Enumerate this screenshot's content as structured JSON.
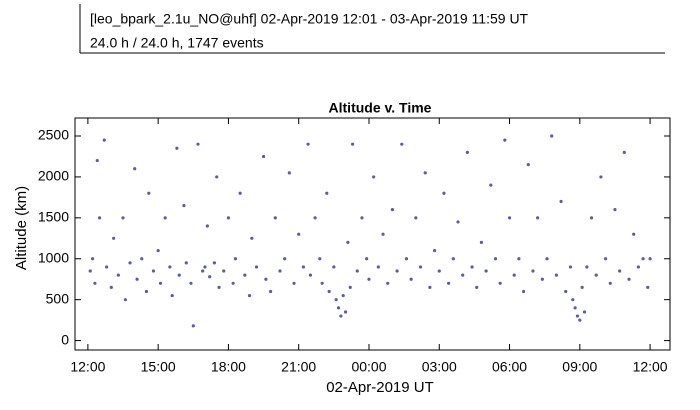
{
  "chart_data": {
    "type": "scatter",
    "header": [
      "[leo_bpark_2.1u_NO@uhf] 02-Apr-2019 12:01 - 03-Apr-2019 11:59 UT",
      "24.0 h / 24.0 h, 1747 events"
    ],
    "title": "Altitude v. Time",
    "x_label": "02-Apr-2019 UT",
    "y_label": "Altitude (km)",
    "color": "#5b5e9a",
    "xlim": [
      -0.55,
      24.85
    ],
    "ylim": [
      -115,
      2720
    ],
    "xticks": [
      {
        "value": 0,
        "label": "12:00"
      },
      {
        "value": 3,
        "label": "15:00"
      },
      {
        "value": 6,
        "label": "18:00"
      },
      {
        "value": 9,
        "label": "21:00"
      },
      {
        "value": 12,
        "label": "00:00"
      },
      {
        "value": 15,
        "label": "03:00"
      },
      {
        "value": 18,
        "label": "06:00"
      },
      {
        "value": 21,
        "label": "09:00"
      },
      {
        "value": 24,
        "label": "12:00"
      }
    ],
    "yticks": [
      0,
      500,
      1000,
      1500,
      2000,
      2500
    ],
    "x": [
      0.1,
      0.2,
      0.3,
      0.4,
      0.5,
      0.7,
      0.8,
      1.0,
      1.1,
      1.3,
      1.5,
      1.6,
      1.8,
      2.0,
      2.1,
      2.3,
      2.5,
      2.6,
      2.8,
      3.0,
      3.1,
      3.3,
      3.5,
      3.6,
      3.8,
      3.9,
      4.1,
      4.2,
      4.4,
      4.5,
      4.7,
      4.9,
      5.0,
      5.1,
      5.2,
      5.4,
      5.5,
      5.6,
      5.8,
      6.0,
      6.2,
      6.3,
      6.5,
      6.7,
      6.9,
      7.0,
      7.2,
      7.5,
      7.6,
      7.8,
      8.0,
      8.2,
      8.4,
      8.6,
      8.8,
      9.0,
      9.2,
      9.4,
      9.5,
      9.7,
      9.9,
      10.0,
      10.2,
      10.3,
      10.5,
      10.6,
      10.7,
      10.8,
      10.9,
      11.0,
      11.1,
      11.2,
      11.3,
      11.5,
      11.7,
      11.9,
      12.0,
      12.2,
      12.4,
      12.6,
      12.8,
      13.0,
      13.2,
      13.4,
      13.6,
      13.8,
      14.0,
      14.2,
      14.4,
      14.6,
      14.8,
      15.0,
      15.2,
      15.4,
      15.6,
      15.8,
      16.0,
      16.2,
      16.4,
      16.6,
      16.8,
      17.0,
      17.2,
      17.4,
      17.6,
      17.8,
      18.0,
      18.2,
      18.4,
      18.6,
      18.8,
      19.0,
      19.2,
      19.4,
      19.6,
      19.8,
      20.0,
      20.2,
      20.4,
      20.6,
      20.7,
      20.8,
      20.9,
      21.0,
      21.1,
      21.2,
      21.3,
      21.5,
      21.7,
      21.9,
      22.1,
      22.3,
      22.5,
      22.7,
      22.9,
      23.1,
      23.3,
      23.5,
      23.7,
      23.9,
      24.0
    ],
    "y": [
      850,
      1000,
      700,
      2200,
      1500,
      2450,
      900,
      650,
      1250,
      800,
      1500,
      500,
      950,
      2100,
      750,
      1000,
      600,
      1800,
      850,
      1100,
      700,
      1500,
      900,
      550,
      2350,
      800,
      1650,
      950,
      700,
      180,
      2400,
      850,
      900,
      1400,
      780,
      950,
      2000,
      650,
      850,
      1500,
      700,
      1000,
      1800,
      800,
      550,
      1250,
      900,
      2250,
      750,
      600,
      1500,
      850,
      1000,
      2050,
      700,
      1300,
      900,
      2400,
      800,
      1500,
      1000,
      700,
      1800,
      600,
      900,
      500,
      400,
      300,
      550,
      350,
      1200,
      650,
      2400,
      850,
      1500,
      1000,
      750,
      2000,
      900,
      1300,
      700,
      1600,
      850,
      2400,
      1000,
      750,
      1500,
      900,
      2050,
      650,
      1100,
      850,
      1800,
      700,
      1000,
      1450,
      800,
      2300,
      900,
      650,
      1200,
      850,
      1900,
      1000,
      700,
      2450,
      1500,
      800,
      1000,
      600,
      2150,
      850,
      1500,
      750,
      1000,
      2500,
      800,
      1700,
      600,
      900,
      500,
      400,
      300,
      250,
      650,
      350,
      900,
      1500,
      800,
      2000,
      1000,
      700,
      1600,
      850,
      2300,
      750,
      1300,
      900,
      1000,
      650,
      1000
    ]
  }
}
